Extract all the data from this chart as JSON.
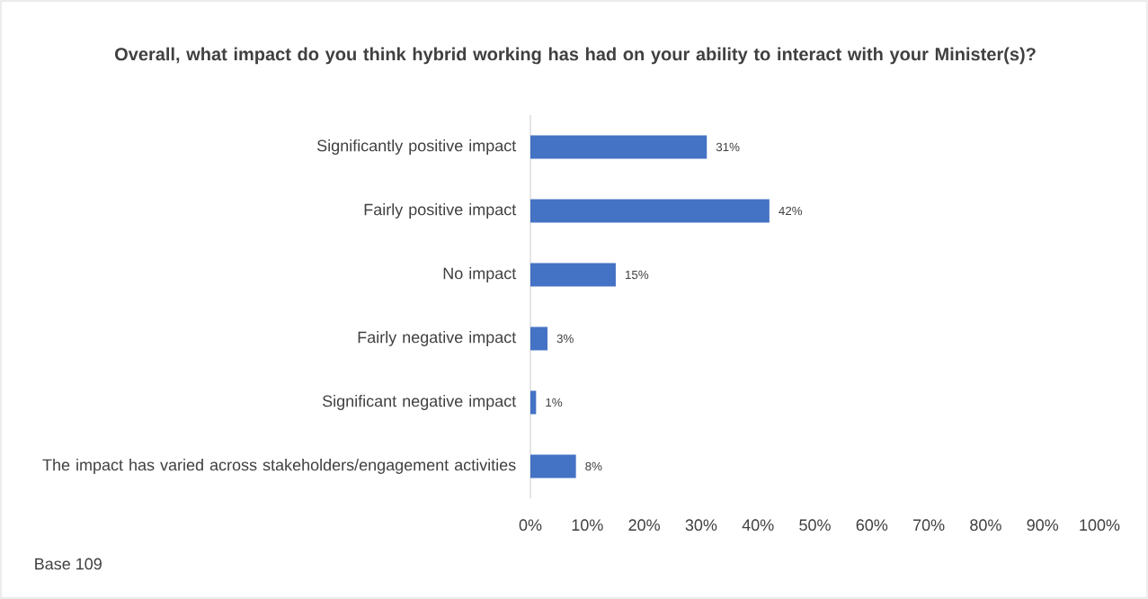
{
  "chart_data": {
    "type": "bar",
    "orientation": "horizontal",
    "title": "Overall, what impact do you think hybrid working has had on your ability to interact with your Minister(s)?",
    "categories": [
      "Significantly positive impact",
      "Fairly positive impact",
      "No impact",
      "Fairly negative impact",
      "Significant negative impact",
      "The impact has varied across stakeholders/engagement activities"
    ],
    "values": [
      31,
      42,
      15,
      3,
      1,
      8
    ],
    "value_labels": [
      "31%",
      "42%",
      "15%",
      "3%",
      "1%",
      "8%"
    ],
    "color": "#4472c4",
    "xlim": [
      0,
      100
    ],
    "xticks": [
      {
        "value": 0,
        "label": "0%"
      },
      {
        "value": 10,
        "label": "10%"
      },
      {
        "value": 20,
        "label": "20%"
      },
      {
        "value": 30,
        "label": "30%"
      },
      {
        "value": 40,
        "label": "40%"
      },
      {
        "value": 50,
        "label": "50%"
      },
      {
        "value": 60,
        "label": "60%"
      },
      {
        "value": 70,
        "label": "70%"
      },
      {
        "value": 80,
        "label": "80%"
      },
      {
        "value": 90,
        "label": "90%"
      },
      {
        "value": 100,
        "label": "100%"
      }
    ],
    "annotations": [
      "Base 109"
    ]
  }
}
